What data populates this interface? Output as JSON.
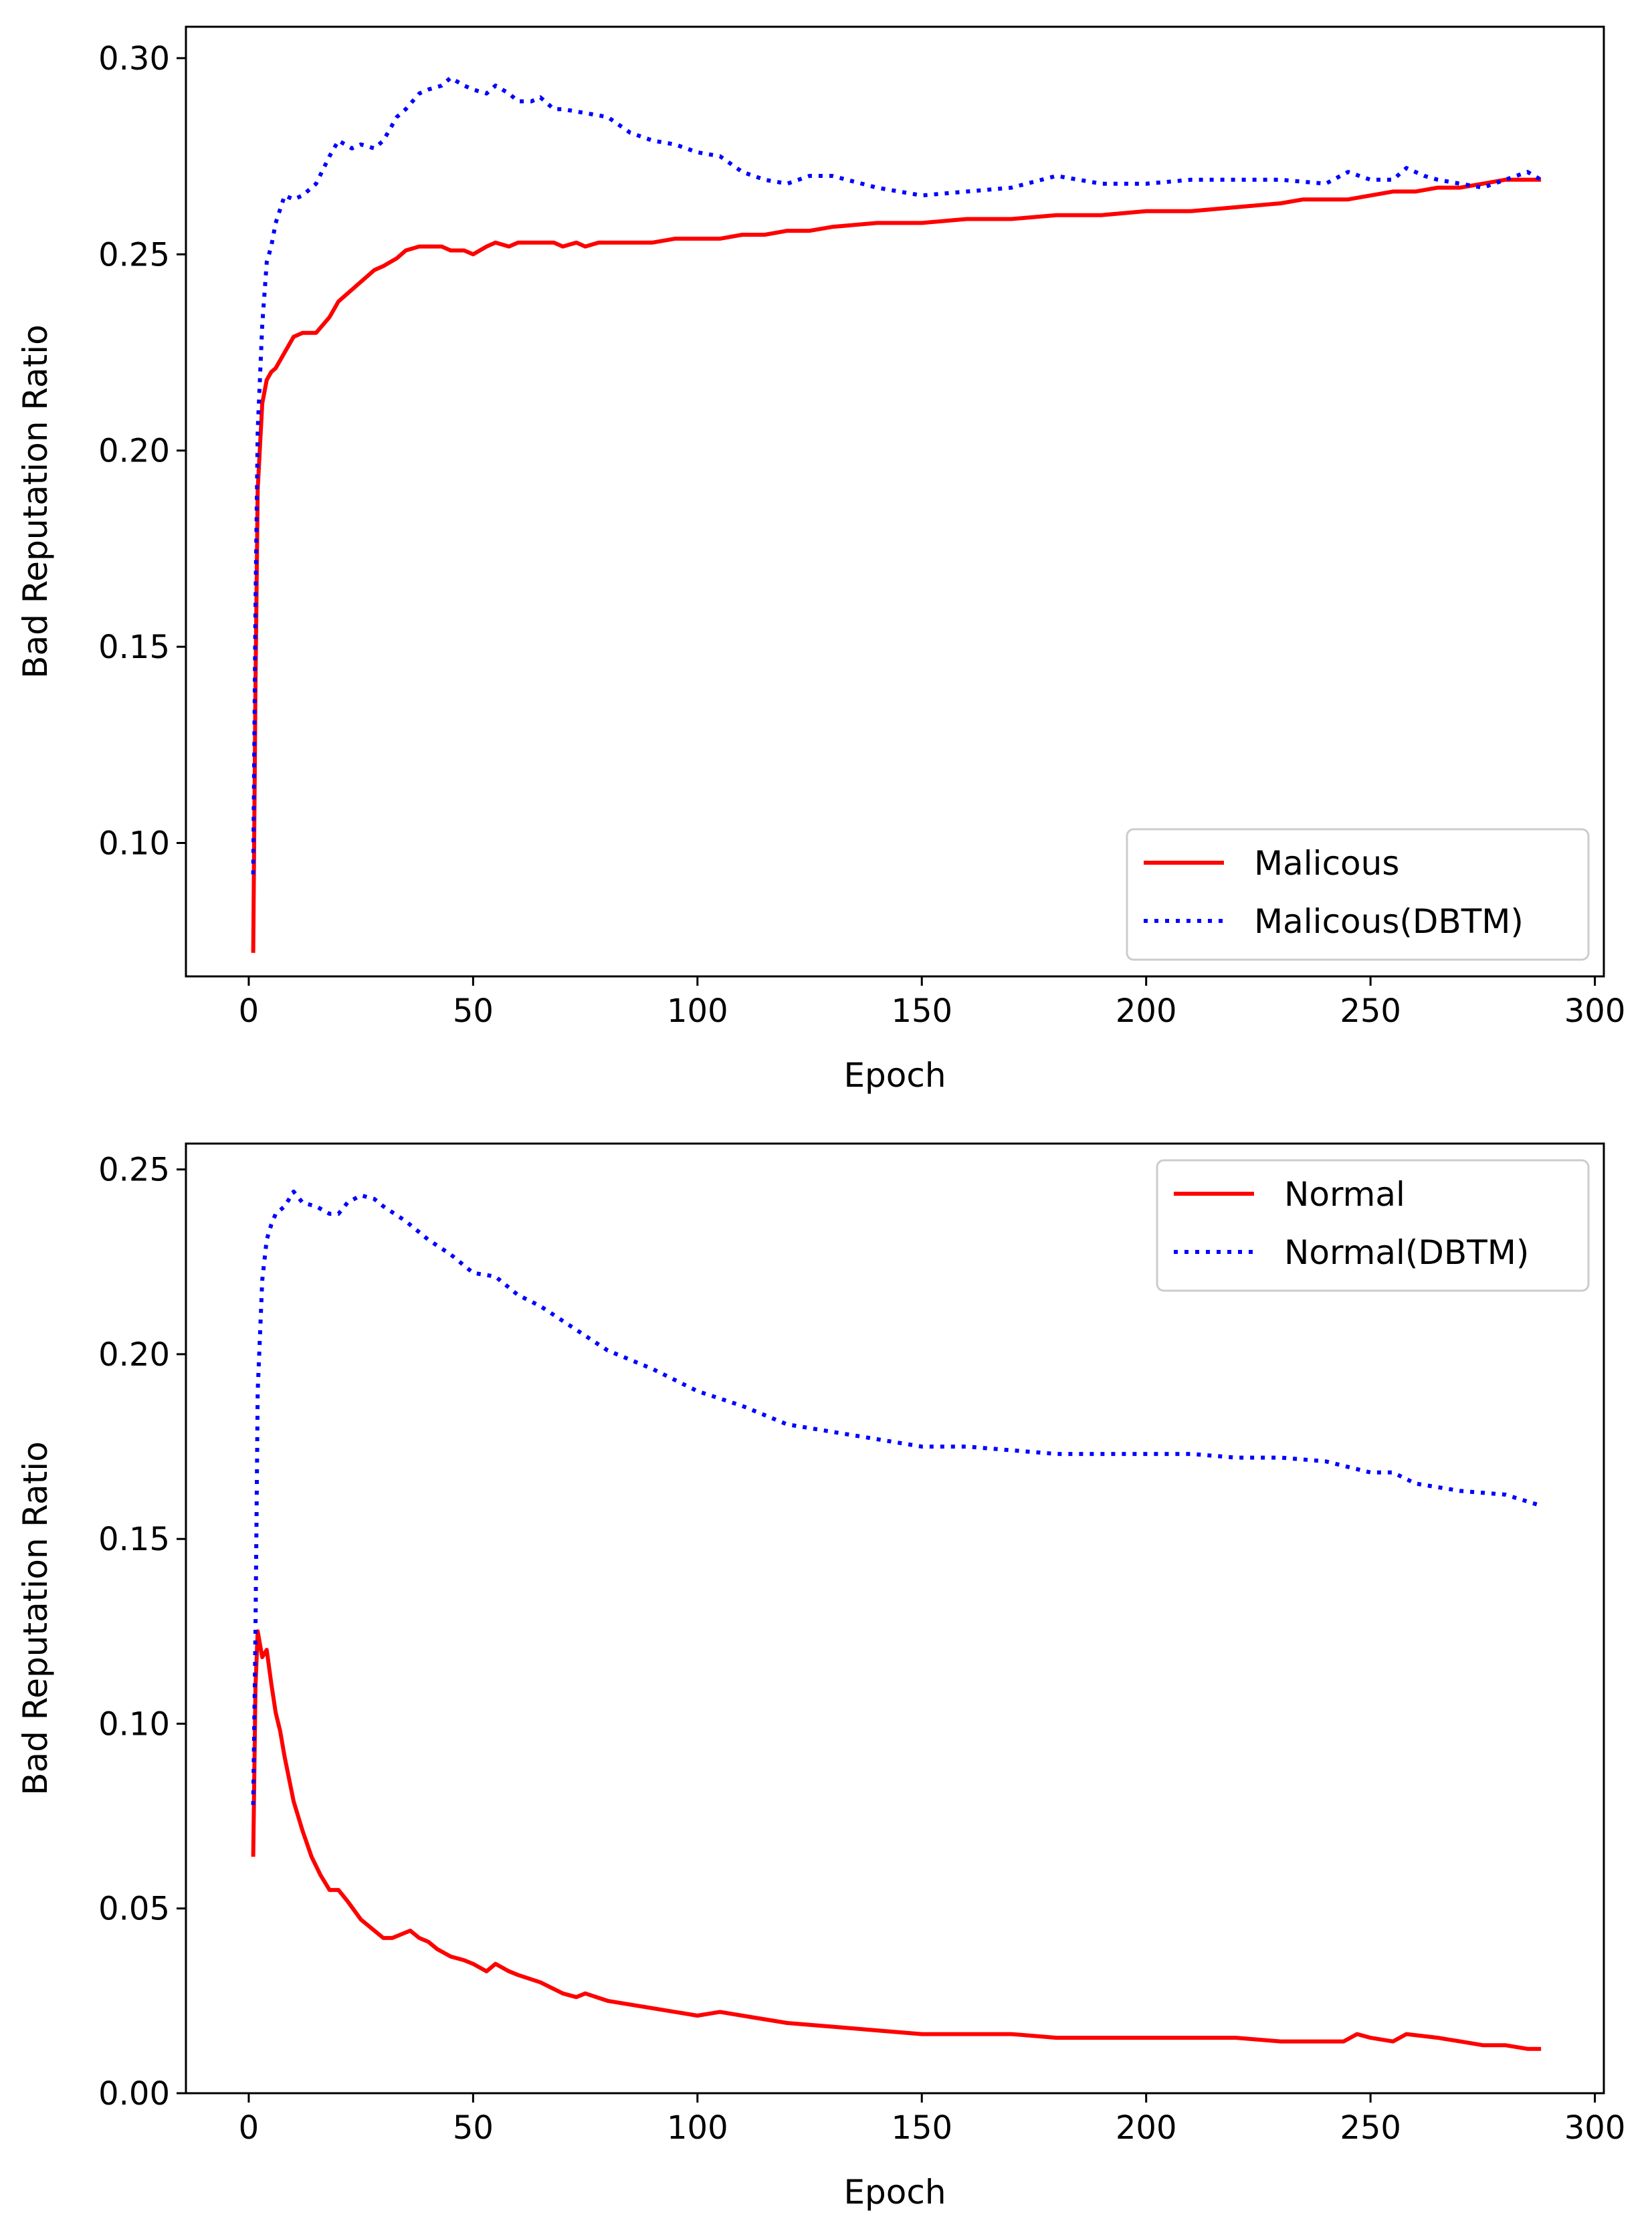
{
  "colors": {
    "malicious": "#ff0000",
    "dbtm": "#0000ff",
    "axis": "#000000",
    "legend_border": "#cccccc"
  },
  "chart_data": [
    {
      "type": "line",
      "title": "",
      "xlabel": "Epoch",
      "ylabel": "Bad Reputation Ratio",
      "xlim": [
        -14,
        302
      ],
      "ylim": [
        0.066,
        0.308
      ],
      "xticks": [
        0,
        50,
        100,
        150,
        200,
        250,
        300
      ],
      "xtick_labels": [
        "0",
        "50",
        "100",
        "150",
        "200",
        "250",
        "300"
      ],
      "yticks": [
        0.1,
        0.15,
        0.2,
        0.25,
        0.3
      ],
      "ytick_labels": [
        "0.10",
        "0.15",
        "0.20",
        "0.25",
        "0.30"
      ],
      "grid": false,
      "legend_position": "bottom-right",
      "series": [
        {
          "name": "Malicous",
          "style": "solid",
          "x": [
            1,
            1.5,
            2,
            3,
            4,
            5,
            6,
            8,
            10,
            12,
            15,
            18,
            20,
            22,
            25,
            28,
            30,
            33,
            35,
            38,
            40,
            43,
            45,
            48,
            50,
            53,
            55,
            58,
            60,
            63,
            65,
            68,
            70,
            73,
            75,
            78,
            80,
            85,
            90,
            95,
            100,
            105,
            110,
            115,
            120,
            125,
            130,
            140,
            150,
            160,
            170,
            180,
            190,
            200,
            210,
            220,
            230,
            235,
            240,
            245,
            250,
            255,
            260,
            265,
            270,
            275,
            280,
            285,
            288
          ],
          "y": [
            0.072,
            0.14,
            0.19,
            0.212,
            0.218,
            0.22,
            0.221,
            0.225,
            0.229,
            0.23,
            0.23,
            0.234,
            0.238,
            0.24,
            0.243,
            0.246,
            0.247,
            0.249,
            0.251,
            0.252,
            0.252,
            0.252,
            0.251,
            0.251,
            0.25,
            0.252,
            0.253,
            0.252,
            0.253,
            0.253,
            0.253,
            0.253,
            0.252,
            0.253,
            0.252,
            0.253,
            0.253,
            0.253,
            0.253,
            0.254,
            0.254,
            0.254,
            0.255,
            0.255,
            0.256,
            0.256,
            0.257,
            0.258,
            0.258,
            0.259,
            0.259,
            0.26,
            0.26,
            0.261,
            0.261,
            0.262,
            0.263,
            0.264,
            0.264,
            0.264,
            0.265,
            0.266,
            0.266,
            0.267,
            0.267,
            0.268,
            0.269,
            0.269,
            0.269
          ]
        },
        {
          "name": "Malicous(DBTM)",
          "style": "dotted",
          "x": [
            1,
            1.5,
            2,
            3,
            4,
            5,
            6,
            8,
            10,
            12,
            15,
            18,
            20,
            23,
            25,
            28,
            30,
            33,
            35,
            38,
            40,
            43,
            45,
            48,
            50,
            53,
            55,
            58,
            60,
            63,
            65,
            68,
            70,
            75,
            80,
            85,
            90,
            95,
            100,
            105,
            110,
            115,
            120,
            125,
            130,
            140,
            150,
            160,
            170,
            180,
            190,
            200,
            210,
            220,
            230,
            240,
            245,
            250,
            255,
            258,
            262,
            265,
            270,
            275,
            280,
            285,
            288
          ],
          "y": [
            0.092,
            0.16,
            0.205,
            0.232,
            0.248,
            0.252,
            0.258,
            0.265,
            0.264,
            0.265,
            0.268,
            0.275,
            0.279,
            0.277,
            0.278,
            0.277,
            0.279,
            0.285,
            0.287,
            0.291,
            0.292,
            0.293,
            0.295,
            0.293,
            0.292,
            0.291,
            0.293,
            0.291,
            0.289,
            0.289,
            0.29,
            0.287,
            0.287,
            0.286,
            0.285,
            0.281,
            0.279,
            0.278,
            0.276,
            0.275,
            0.271,
            0.269,
            0.268,
            0.27,
            0.27,
            0.267,
            0.265,
            0.266,
            0.267,
            0.27,
            0.268,
            0.268,
            0.269,
            0.269,
            0.269,
            0.268,
            0.271,
            0.269,
            0.269,
            0.272,
            0.27,
            0.269,
            0.268,
            0.267,
            0.269,
            0.271,
            0.269
          ]
        }
      ]
    },
    {
      "type": "line",
      "title": "",
      "xlabel": "Epoch",
      "ylabel": "Bad Reputation Ratio",
      "xlim": [
        -14,
        302
      ],
      "ylim": [
        0.0,
        0.257
      ],
      "xticks": [
        0,
        50,
        100,
        150,
        200,
        250,
        300
      ],
      "xtick_labels": [
        "0",
        "50",
        "100",
        "150",
        "200",
        "250",
        "300"
      ],
      "yticks": [
        0.0,
        0.05,
        0.1,
        0.15,
        0.2,
        0.25
      ],
      "ytick_labels": [
        "0.00",
        "0.05",
        "0.10",
        "0.15",
        "0.20",
        "0.25"
      ],
      "grid": false,
      "legend_position": "top-right",
      "series": [
        {
          "name": "Normal",
          "style": "solid",
          "x": [
            1,
            1.5,
            2,
            3,
            4,
            5,
            6,
            7,
            8,
            10,
            12,
            14,
            16,
            18,
            20,
            22,
            25,
            28,
            30,
            32,
            34,
            36,
            38,
            40,
            42,
            45,
            48,
            50,
            53,
            55,
            58,
            60,
            65,
            70,
            73,
            75,
            80,
            90,
            100,
            105,
            110,
            115,
            120,
            130,
            140,
            150,
            160,
            170,
            180,
            190,
            200,
            210,
            220,
            230,
            240,
            244,
            247,
            250,
            255,
            258,
            265,
            270,
            275,
            278,
            280,
            285,
            288
          ],
          "y": [
            0.064,
            0.11,
            0.125,
            0.118,
            0.12,
            0.111,
            0.103,
            0.098,
            0.091,
            0.079,
            0.071,
            0.064,
            0.059,
            0.055,
            0.055,
            0.052,
            0.047,
            0.044,
            0.042,
            0.042,
            0.043,
            0.044,
            0.042,
            0.041,
            0.039,
            0.037,
            0.036,
            0.035,
            0.033,
            0.035,
            0.033,
            0.032,
            0.03,
            0.027,
            0.026,
            0.027,
            0.025,
            0.023,
            0.021,
            0.022,
            0.021,
            0.02,
            0.019,
            0.018,
            0.017,
            0.016,
            0.016,
            0.016,
            0.015,
            0.015,
            0.015,
            0.015,
            0.015,
            0.014,
            0.014,
            0.014,
            0.016,
            0.015,
            0.014,
            0.016,
            0.015,
            0.014,
            0.013,
            0.013,
            0.013,
            0.012,
            0.012
          ]
        },
        {
          "name": "Normal(DBTM)",
          "style": "dotted",
          "x": [
            1,
            1.5,
            2,
            3,
            4,
            5,
            6,
            8,
            10,
            12,
            15,
            18,
            20,
            22,
            25,
            28,
            30,
            35,
            40,
            45,
            50,
            55,
            60,
            65,
            70,
            75,
            80,
            90,
            100,
            110,
            120,
            130,
            140,
            150,
            160,
            170,
            180,
            190,
            200,
            210,
            220,
            230,
            240,
            250,
            255,
            260,
            270,
            280,
            288
          ],
          "y": [
            0.078,
            0.125,
            0.19,
            0.22,
            0.231,
            0.235,
            0.238,
            0.24,
            0.244,
            0.241,
            0.24,
            0.238,
            0.238,
            0.241,
            0.243,
            0.242,
            0.24,
            0.236,
            0.231,
            0.227,
            0.222,
            0.221,
            0.216,
            0.213,
            0.209,
            0.205,
            0.201,
            0.196,
            0.19,
            0.186,
            0.181,
            0.179,
            0.177,
            0.175,
            0.175,
            0.174,
            0.173,
            0.173,
            0.173,
            0.173,
            0.172,
            0.172,
            0.171,
            0.168,
            0.168,
            0.165,
            0.163,
            0.162,
            0.159
          ]
        }
      ]
    }
  ]
}
